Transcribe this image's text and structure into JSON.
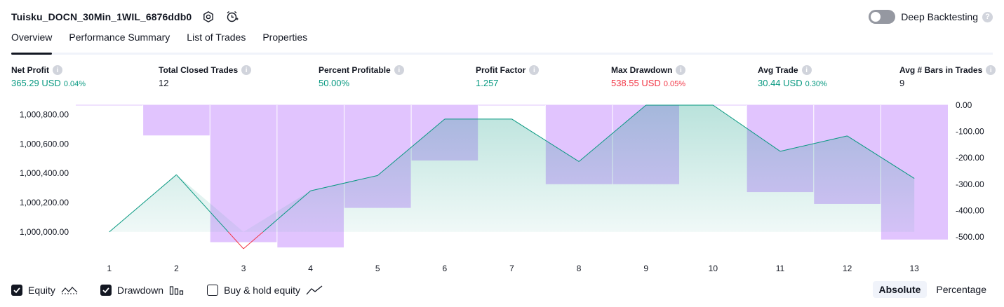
{
  "header": {
    "title": "Tuisku_DOCN_30Min_1WIL_6876ddb0",
    "deep_backtesting_label": "Deep Backtesting"
  },
  "tabs": [
    {
      "label": "Overview",
      "active": true
    },
    {
      "label": "Performance Summary",
      "active": false
    },
    {
      "label": "List of Trades",
      "active": false
    },
    {
      "label": "Properties",
      "active": false
    }
  ],
  "metrics": [
    {
      "label": "Net Profit",
      "value": "365.29 USD",
      "pct": "0.04%",
      "color": "#089981"
    },
    {
      "label": "Total Closed Trades",
      "value": "12",
      "pct": "",
      "color": "#131722"
    },
    {
      "label": "Percent Profitable",
      "value": "50.00%",
      "pct": "",
      "color": "#089981"
    },
    {
      "label": "Profit Factor",
      "value": "1.257",
      "pct": "",
      "color": "#089981"
    },
    {
      "label": "Max Drawdown",
      "value": "538.55 USD",
      "pct": "0.05%",
      "color": "#f23645"
    },
    {
      "label": "Avg Trade",
      "value": "30.44 USD",
      "pct": "0.30%",
      "color": "#089981"
    },
    {
      "label": "Avg # Bars in Trades",
      "value": "9",
      "pct": "",
      "color": "#131722"
    }
  ],
  "chart_data": {
    "type": "line",
    "x": [
      1,
      2,
      3,
      4,
      5,
      6,
      7,
      8,
      9,
      10,
      11,
      12,
      13
    ],
    "x_tick_labels": [
      "1",
      "2",
      "3",
      "4",
      "5",
      "6",
      "7",
      "8",
      "9",
      "10",
      "11",
      "12",
      "13"
    ],
    "left_axis": {
      "ticks": [
        1000000,
        1000200,
        1000400,
        1000600,
        1000800
      ],
      "tick_labels": [
        "1,000,000.00",
        "1,000,200.00",
        "1,000,400.00",
        "1,000,600.00",
        "1,000,800.00"
      ],
      "ylim": [
        999870,
        1000865
      ]
    },
    "right_axis": {
      "ticks": [
        0,
        -100,
        -200,
        -300,
        -400,
        -500
      ],
      "tick_labels": [
        "0.00",
        "-100.00",
        "-200.00",
        "-300.00",
        "-400.00",
        "-500.00"
      ],
      "ylim": [
        -540,
        0
      ]
    },
    "series": [
      {
        "name": "Equity",
        "axis": "left",
        "color": "#089981",
        "values": [
          1000000,
          1000390,
          999885,
          1000280,
          1000385,
          1000770,
          1000770,
          1000480,
          1000865,
          1000865,
          1000550,
          1000655,
          1000365
        ]
      },
      {
        "name": "Drawdown",
        "axis": "right",
        "color": "#e1c4fe",
        "style": "bars",
        "values": [
          0,
          -115,
          -520,
          -540,
          -390,
          -210,
          0,
          -300,
          -300,
          0,
          -330,
          -375,
          -510
        ]
      }
    ]
  },
  "legend": [
    {
      "label": "Equity",
      "checked": true
    },
    {
      "label": "Drawdown",
      "checked": true
    },
    {
      "label": "Buy & hold equity",
      "checked": false
    }
  ],
  "mode": {
    "absolute_label": "Absolute",
    "percentage_label": "Percentage",
    "active": "Absolute"
  }
}
